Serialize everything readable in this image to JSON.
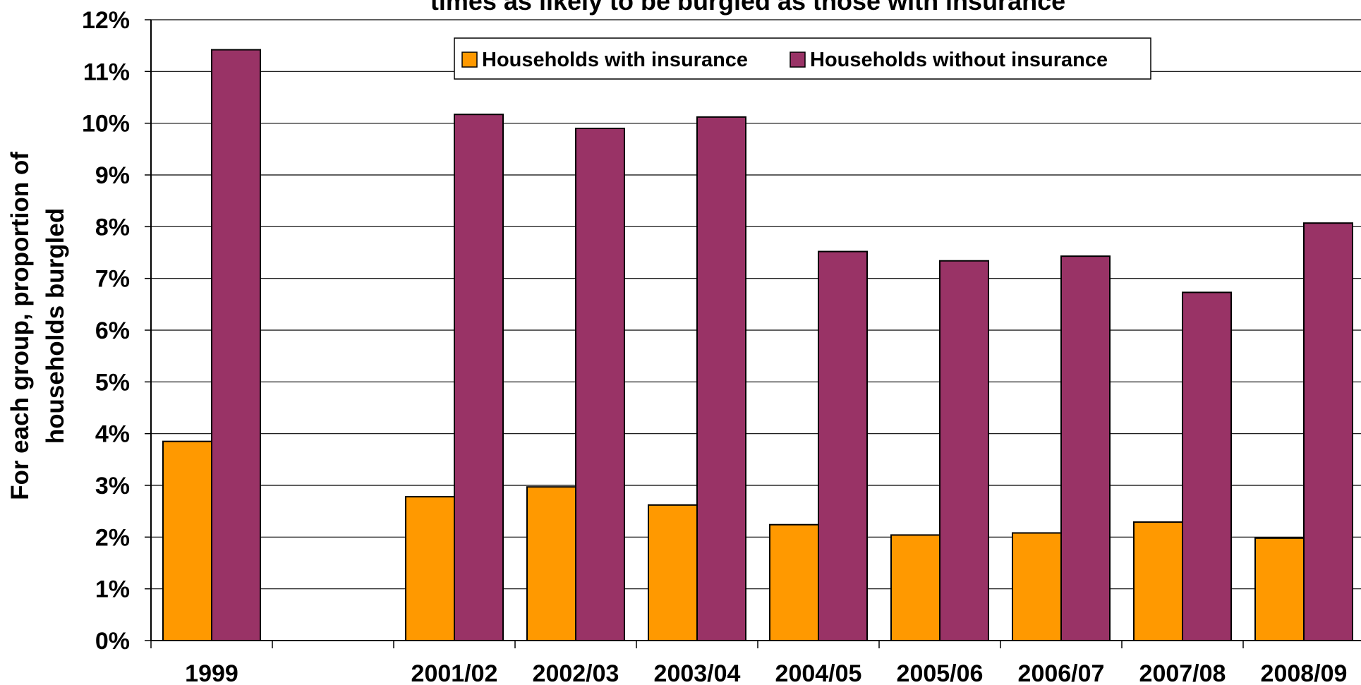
{
  "chart_data": {
    "type": "bar",
    "title": "times as likely to be burgled as those with insurance",
    "ylabel_lines": [
      "For each group, proportion of",
      "households burgled"
    ],
    "xlabel": "",
    "categories": [
      "1999",
      "",
      "2001/02",
      "2002/03",
      "2003/04",
      "2004/05",
      "2005/06",
      "2006/07",
      "2007/08",
      "2008/09"
    ],
    "series": [
      {
        "name": "Households with insurance",
        "color": "#FF9900",
        "values": [
          3.85,
          null,
          2.78,
          2.97,
          2.62,
          2.24,
          2.04,
          2.08,
          2.29,
          1.98
        ]
      },
      {
        "name": "Households without insurance",
        "color": "#993366",
        "values": [
          11.42,
          null,
          10.17,
          9.9,
          10.12,
          7.52,
          7.34,
          7.43,
          6.73,
          8.07
        ]
      }
    ],
    "ylim": [
      0,
      12
    ],
    "yticks": [
      "0%",
      "1%",
      "2%",
      "3%",
      "4%",
      "5%",
      "6%",
      "7%",
      "8%",
      "9%",
      "10%",
      "11%",
      "12%"
    ],
    "grid": true,
    "legend": "top-center"
  }
}
